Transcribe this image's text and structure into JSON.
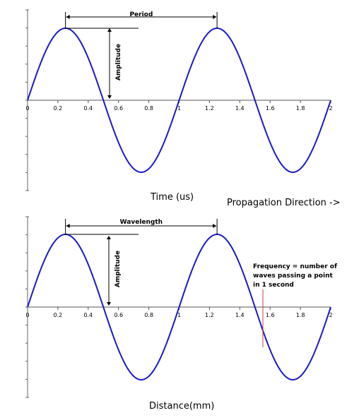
{
  "chart_data": [
    {
      "type": "line",
      "series": [
        {
          "x_start": 0,
          "x_end": 2,
          "period": 1,
          "amplitude": 1,
          "color": "#1a1acc"
        }
      ],
      "xlim": [
        0,
        2
      ],
      "x_ticks": [
        "0",
        "0.2",
        "0.4",
        "0.6",
        "0.8",
        "1",
        "1.2",
        "1.4",
        "1.6",
        "1.8",
        "2"
      ],
      "xlabel": "Time (us)",
      "annotations": {
        "span_label": "Period",
        "amplitude_label": "Amplitude"
      },
      "grid": false
    },
    {
      "type": "line",
      "series": [
        {
          "x_start": 0,
          "x_end": 2,
          "period": 1,
          "amplitude": 1,
          "color": "#1a1acc"
        }
      ],
      "xlim": [
        0,
        2
      ],
      "x_ticks": [
        "0",
        "0.2",
        "0.4",
        "0.6",
        "0.8",
        "1",
        "1.2",
        "1.4",
        "1.6",
        "1.8",
        "2"
      ],
      "xlabel": "Distance(mm)",
      "annotations": {
        "span_label": "Wavelength",
        "amplitude_label": "Amplitude",
        "frequency_note": [
          "Frequency = number of",
          "waves passing a point",
          "in 1 second"
        ]
      },
      "grid": false
    }
  ],
  "propagation_label": "Propagation Direction ->"
}
